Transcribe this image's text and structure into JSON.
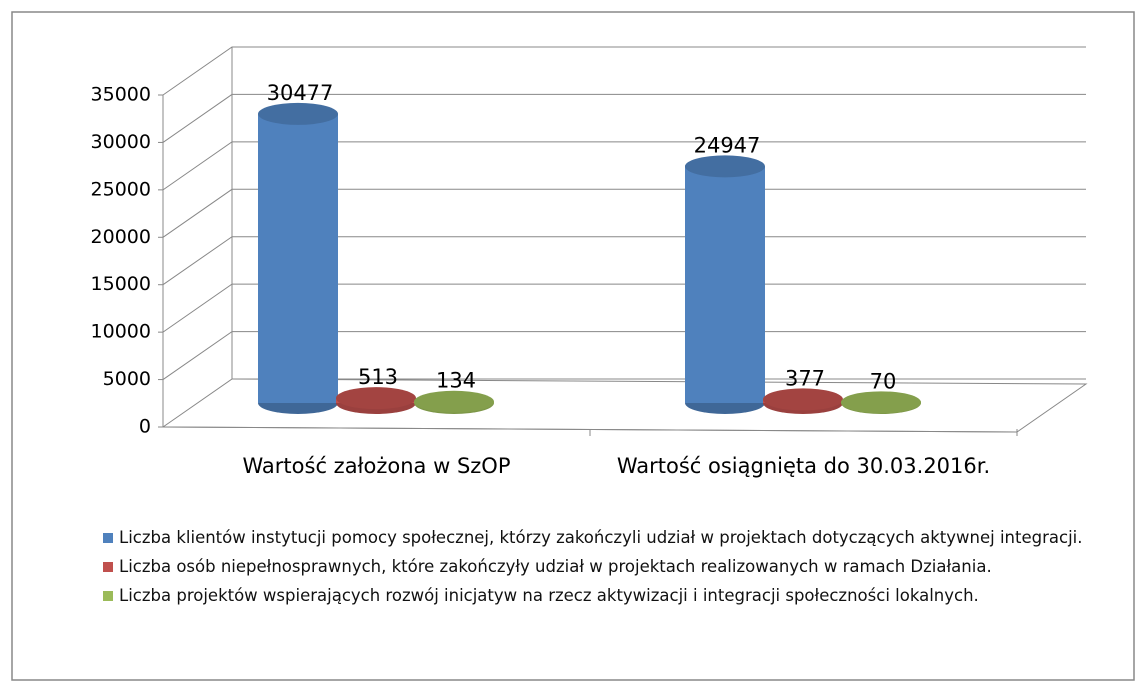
{
  "chart_data": {
    "type": "bar3d",
    "categories": [
      "Wartość założona w SzOP",
      "Wartość osiągnięta do 30.03.2016r."
    ],
    "series": [
      {
        "name": "Liczba klientów instytucji pomocy społecznej, którzy zakończyli udział w projektach dotyczących aktywnej integracji.",
        "color": "#4f81bd",
        "values": [
          30477,
          24947
        ]
      },
      {
        "name": "Liczba osób niepełnosprawnych, które zakończyły udział w projektach realizowanych w ramach Działania.",
        "color": "#c0504d",
        "values": [
          513,
          377
        ]
      },
      {
        "name": "Liczba projektów wspierających rozwój inicjatyw na rzecz aktywizacji i integracji społeczności lokalnych.",
        "color": "#9bbb59",
        "values": [
          134,
          70
        ]
      }
    ],
    "ylim": [
      0,
      35000
    ],
    "yticks": [
      0,
      5000,
      10000,
      15000,
      20000,
      25000,
      30000,
      35000
    ],
    "grid": true,
    "legend": "bottom"
  }
}
